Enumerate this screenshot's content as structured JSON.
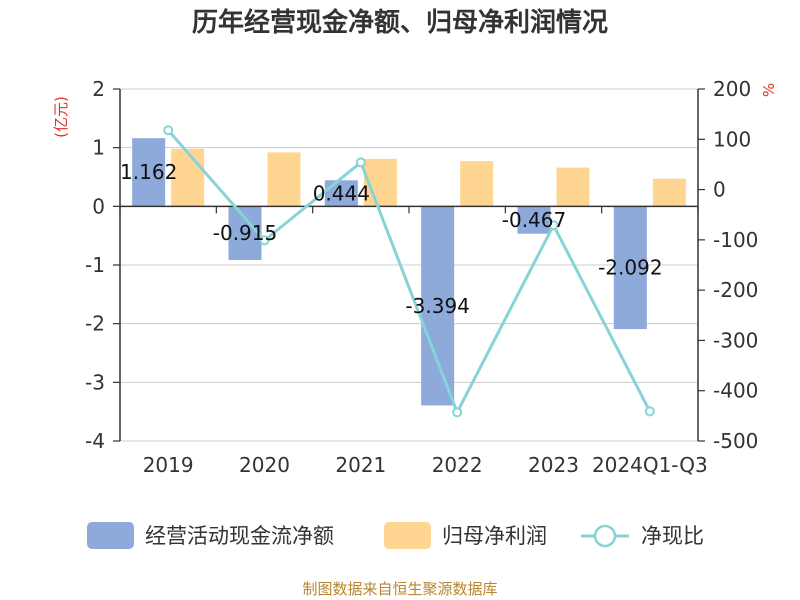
{
  "chart_data": {
    "type": "bar",
    "title": "历年经营现金净额、归母净利润情况",
    "categories": [
      "2019",
      "2020",
      "2021",
      "2022",
      "2023",
      "2024Q1-Q3"
    ],
    "series": [
      {
        "name": "经营活动现金流净额",
        "kind": "bar",
        "axis": "left",
        "color": "#8eaadb",
        "values": [
          1.162,
          -0.915,
          0.444,
          -3.394,
          -0.467,
          -2.092
        ],
        "labels": [
          "1.162",
          "-0.915",
          "0.444",
          "-3.394",
          "-0.467",
          "-2.092"
        ]
      },
      {
        "name": "归母净利润",
        "kind": "bar",
        "axis": "left",
        "color": "#ffd592",
        "values": [
          0.98,
          0.92,
          0.81,
          0.77,
          0.66,
          0.47
        ]
      },
      {
        "name": "净现比",
        "kind": "line",
        "axis": "right",
        "color": "#88d3d6",
        "values": [
          118,
          -101,
          54,
          -443,
          -71,
          -441
        ]
      }
    ],
    "y_left": {
      "unit": "(亿元)",
      "lim": [
        -4,
        2
      ],
      "ticks": [
        2,
        1,
        0,
        -1,
        -2,
        -3,
        -4
      ]
    },
    "y_right": {
      "unit": "%",
      "lim": [
        -500,
        200
      ],
      "ticks": [
        200,
        100,
        0,
        -100,
        -200,
        -300,
        -400,
        -500
      ]
    },
    "grid": true,
    "legend_position": "bottom",
    "source": "制图数据来自恒生聚源数据库"
  }
}
